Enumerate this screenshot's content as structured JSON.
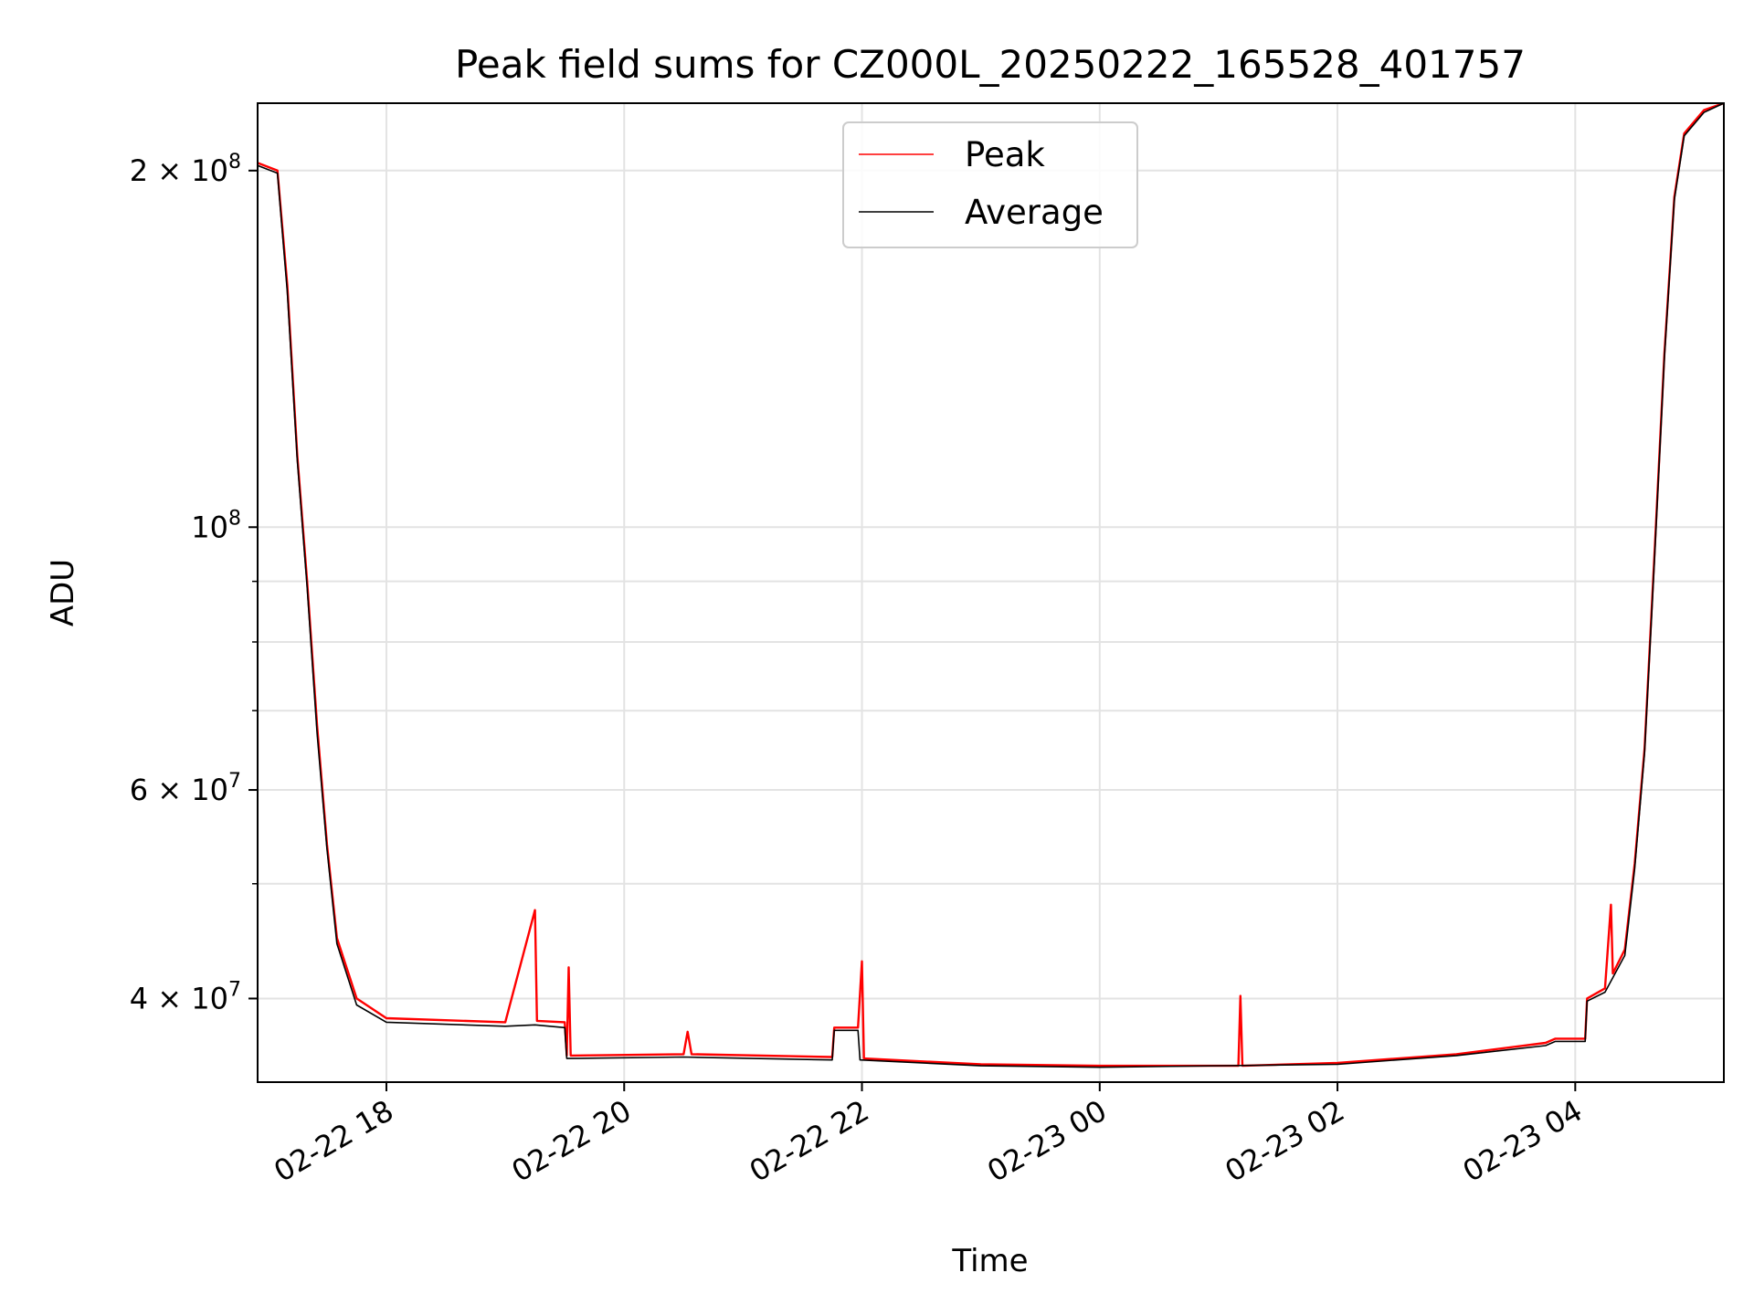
{
  "chart_data": {
    "type": "line",
    "title": "Peak field sums for CZ000L_20250222_165528_401757",
    "xlabel": "Time",
    "ylabel": "ADU",
    "yscale": "log",
    "ylim": [
      34000000,
      228000000
    ],
    "xlim": [
      "2025-02-22T16:55",
      "2025-02-23T05:15"
    ],
    "grid": true,
    "legend": {
      "placement": "top-center"
    },
    "x_ticks": [
      {
        "t": "2025-02-22T18:00",
        "label": "02-22 18"
      },
      {
        "t": "2025-02-22T20:00",
        "label": "02-22 20"
      },
      {
        "t": "2025-02-22T22:00",
        "label": "02-22 22"
      },
      {
        "t": "2025-02-23T00:00",
        "label": "02-23 00"
      },
      {
        "t": "2025-02-23T02:00",
        "label": "02-23 02"
      },
      {
        "t": "2025-02-23T04:00",
        "label": "02-23 04"
      }
    ],
    "y_ticks": [
      {
        "value": 40000000,
        "mantissa": "4",
        "exponent": "7"
      },
      {
        "value": 60000000,
        "mantissa": "6",
        "exponent": "7"
      },
      {
        "value": 100000000,
        "base": "10",
        "exponent": "8"
      },
      {
        "value": 200000000,
        "mantissa": "2",
        "exponent": "8"
      }
    ],
    "y_minor_ticks": [
      50000000,
      70000000,
      80000000,
      90000000
    ],
    "series": [
      {
        "name": "Peak",
        "color": "#ff0000",
        "points": [
          [
            "2025-02-22T16:55",
            203000000
          ],
          [
            "2025-02-22T17:05",
            200000000
          ],
          [
            "2025-02-22T17:10",
            160000000
          ],
          [
            "2025-02-22T17:15",
            115000000
          ],
          [
            "2025-02-22T17:20",
            90000000
          ],
          [
            "2025-02-22T17:25",
            68000000
          ],
          [
            "2025-02-22T17:30",
            54000000
          ],
          [
            "2025-02-22T17:35",
            45000000
          ],
          [
            "2025-02-22T17:45",
            40000000
          ],
          [
            "2025-02-22T18:00",
            38500000
          ],
          [
            "2025-02-22T19:00",
            38200000
          ],
          [
            "2025-02-22T19:15",
            47500000
          ],
          [
            "2025-02-22T19:16",
            38300000
          ],
          [
            "2025-02-22T19:30",
            38200000
          ],
          [
            "2025-02-22T19:31",
            35800000
          ],
          [
            "2025-02-22T19:32",
            42500000
          ],
          [
            "2025-02-22T19:33",
            35800000
          ],
          [
            "2025-02-22T20:30",
            35900000
          ],
          [
            "2025-02-22T20:32",
            37500000
          ],
          [
            "2025-02-22T20:34",
            35900000
          ],
          [
            "2025-02-22T21:45",
            35700000
          ],
          [
            "2025-02-22T21:46",
            37800000
          ],
          [
            "2025-02-22T21:58",
            37800000
          ],
          [
            "2025-02-22T22:00",
            43000000
          ],
          [
            "2025-02-22T22:01",
            35600000
          ],
          [
            "2025-02-22T23:00",
            35200000
          ],
          [
            "2025-02-23T00:00",
            35100000
          ],
          [
            "2025-02-23T01:10",
            35100000
          ],
          [
            "2025-02-23T01:11",
            40200000
          ],
          [
            "2025-02-23T01:12",
            35100000
          ],
          [
            "2025-02-23T02:00",
            35300000
          ],
          [
            "2025-02-23T03:00",
            35900000
          ],
          [
            "2025-02-23T03:45",
            36700000
          ],
          [
            "2025-02-23T03:50",
            37000000
          ],
          [
            "2025-02-23T04:05",
            37000000
          ],
          [
            "2025-02-23T04:06",
            40000000
          ],
          [
            "2025-02-23T04:15",
            40800000
          ],
          [
            "2025-02-23T04:18",
            48000000
          ],
          [
            "2025-02-23T04:19",
            42000000
          ],
          [
            "2025-02-23T04:25",
            44000000
          ],
          [
            "2025-02-23T04:30",
            52000000
          ],
          [
            "2025-02-23T04:35",
            65000000
          ],
          [
            "2025-02-23T04:40",
            95000000
          ],
          [
            "2025-02-23T04:45",
            140000000
          ],
          [
            "2025-02-23T04:50",
            190000000
          ],
          [
            "2025-02-23T04:55",
            215000000
          ],
          [
            "2025-02-23T05:05",
            225000000
          ],
          [
            "2025-02-23T05:15",
            228000000
          ]
        ]
      },
      {
        "name": "Average",
        "color": "#000000",
        "points": [
          [
            "2025-02-22T16:55",
            202000000
          ],
          [
            "2025-02-22T17:05",
            199000000
          ],
          [
            "2025-02-22T17:10",
            158000000
          ],
          [
            "2025-02-22T17:15",
            114000000
          ],
          [
            "2025-02-22T17:20",
            89000000
          ],
          [
            "2025-02-22T17:25",
            67000000
          ],
          [
            "2025-02-22T17:30",
            53500000
          ],
          [
            "2025-02-22T17:35",
            44500000
          ],
          [
            "2025-02-22T17:45",
            39500000
          ],
          [
            "2025-02-22T18:00",
            38200000
          ],
          [
            "2025-02-22T19:00",
            37900000
          ],
          [
            "2025-02-22T19:15",
            38000000
          ],
          [
            "2025-02-22T19:30",
            37800000
          ],
          [
            "2025-02-22T19:31",
            35600000
          ],
          [
            "2025-02-22T20:30",
            35700000
          ],
          [
            "2025-02-22T21:45",
            35500000
          ],
          [
            "2025-02-22T21:46",
            37600000
          ],
          [
            "2025-02-22T21:58",
            37600000
          ],
          [
            "2025-02-22T21:59",
            35500000
          ],
          [
            "2025-02-22T23:00",
            35100000
          ],
          [
            "2025-02-23T00:00",
            35000000
          ],
          [
            "2025-02-23T02:00",
            35200000
          ],
          [
            "2025-02-23T03:00",
            35800000
          ],
          [
            "2025-02-23T03:45",
            36500000
          ],
          [
            "2025-02-23T03:50",
            36800000
          ],
          [
            "2025-02-23T04:05",
            36800000
          ],
          [
            "2025-02-23T04:06",
            39800000
          ],
          [
            "2025-02-23T04:15",
            40500000
          ],
          [
            "2025-02-23T04:25",
            43500000
          ],
          [
            "2025-02-23T04:30",
            51500000
          ],
          [
            "2025-02-23T04:35",
            64500000
          ],
          [
            "2025-02-23T04:40",
            94000000
          ],
          [
            "2025-02-23T04:45",
            139000000
          ],
          [
            "2025-02-23T04:50",
            189000000
          ],
          [
            "2025-02-23T04:55",
            214000000
          ],
          [
            "2025-02-23T05:05",
            224000000
          ],
          [
            "2025-02-23T05:15",
            228000000
          ]
        ]
      }
    ]
  }
}
